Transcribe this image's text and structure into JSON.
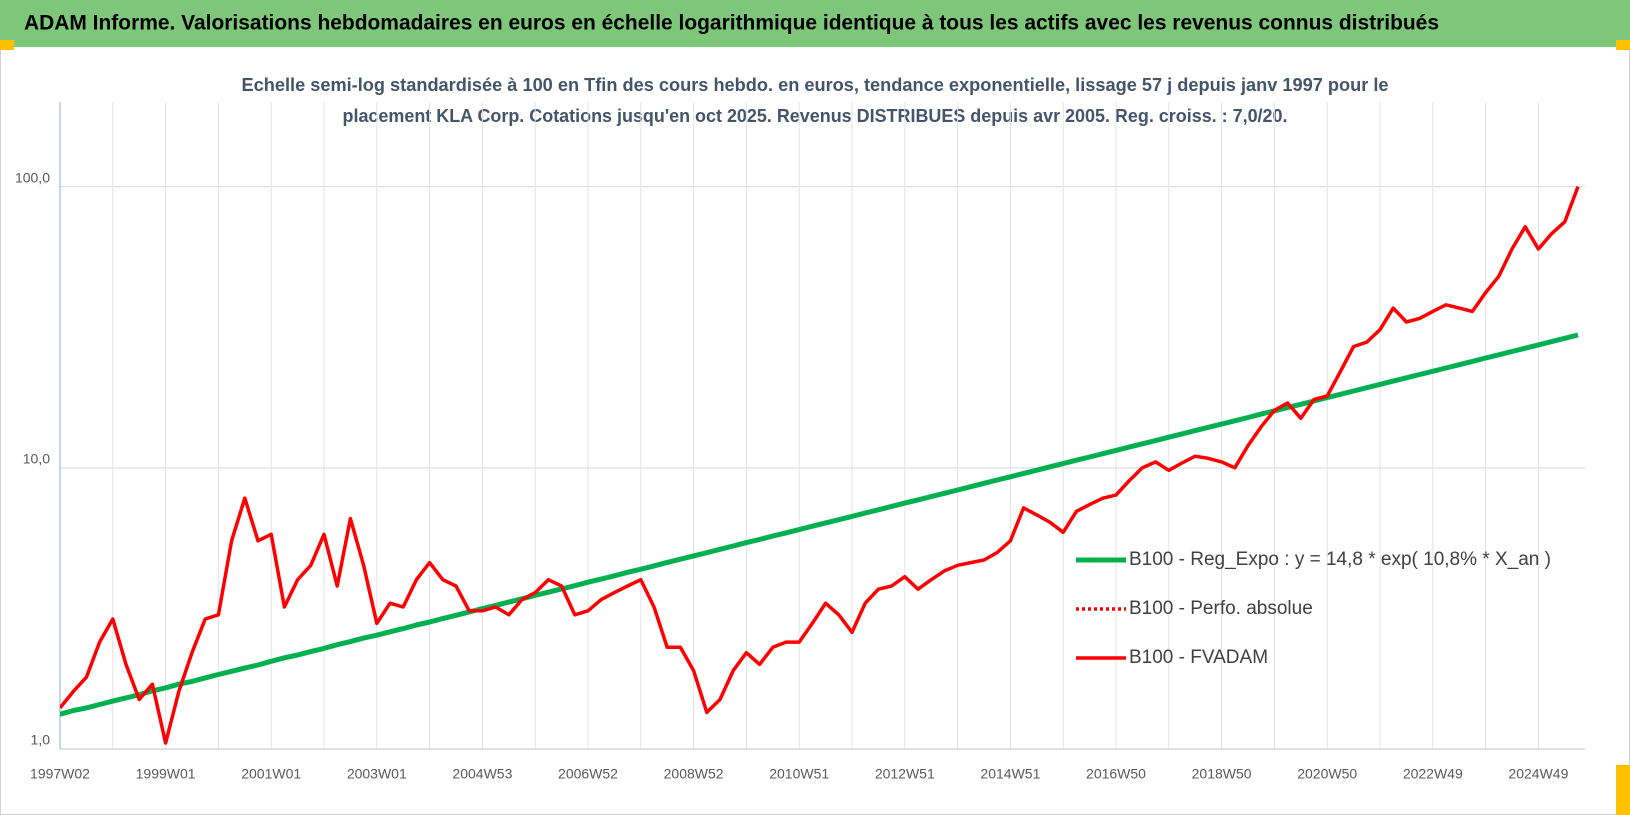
{
  "chart_data": {
    "type": "line",
    "title": "ADAM Informe. Valorisations hebdomadaires en euros en échelle logarithmique identique à tous les actifs avec les revenus connus distribués",
    "subtitle": [
      "Echelle semi-log standardisée à 100 en Tfin des cours hebdo. en euros, tendance exponentielle, lissage 57 j depuis janv 1997 pour le",
      "placement KLA Corp. Cotations jusqu'en oct 2025. Revenus DISTRIBUES depuis avr 2005. Reg. croiss. : 7,0/20."
    ],
    "log_y": true,
    "grid": true,
    "legend_position": "right",
    "ylim": [
      1,
      200
    ],
    "yticks": [
      {
        "value": 1,
        "label": "1,0"
      },
      {
        "value": 10,
        "label": "10,0"
      },
      {
        "value": 100,
        "label": "100,0"
      }
    ],
    "categories": [
      "1997W02",
      null,
      null,
      null,
      null,
      null,
      null,
      null,
      "1999W01",
      null,
      null,
      null,
      null,
      null,
      null,
      null,
      "2001W01",
      null,
      null,
      null,
      null,
      null,
      null,
      null,
      "2003W01",
      null,
      null,
      null,
      null,
      null,
      null,
      null,
      "2004W53",
      null,
      null,
      null,
      null,
      null,
      null,
      null,
      "2006W52",
      null,
      null,
      null,
      null,
      null,
      null,
      null,
      "2008W52",
      null,
      null,
      null,
      null,
      null,
      null,
      null,
      "2010W51",
      null,
      null,
      null,
      null,
      null,
      null,
      null,
      "2012W51",
      null,
      null,
      null,
      null,
      null,
      null,
      null,
      "2014W51",
      null,
      null,
      null,
      null,
      null,
      null,
      null,
      "2016W50",
      null,
      null,
      null,
      null,
      null,
      null,
      null,
      "2018W50",
      null,
      null,
      null,
      null,
      null,
      null,
      null,
      "2020W50",
      null,
      null,
      null,
      null,
      null,
      null,
      null,
      "2022W49",
      null,
      null,
      null,
      null,
      null,
      null,
      null,
      "2024W49",
      null,
      null,
      null
    ],
    "series": [
      {
        "name": "B100 - Reg_Expo : y = 14,8 * exp( 10,8% *  X_an )",
        "color": "#00b050",
        "line_style": "solid",
        "values": [
          1.33,
          1.37,
          1.4,
          1.44,
          1.48,
          1.52,
          1.56,
          1.61,
          1.65,
          1.7,
          1.74,
          1.79,
          1.84,
          1.89,
          1.94,
          1.99,
          2.05,
          2.11,
          2.16,
          2.22,
          2.28,
          2.35,
          2.41,
          2.48,
          2.54,
          2.61,
          2.68,
          2.76,
          2.83,
          2.91,
          2.99,
          3.07,
          3.16,
          3.24,
          3.33,
          3.42,
          3.52,
          3.61,
          3.71,
          3.81,
          3.92,
          4.02,
          4.13,
          4.25,
          4.36,
          4.48,
          4.61,
          4.73,
          4.86,
          4.99,
          5.13,
          5.27,
          5.42,
          5.56,
          5.72,
          5.87,
          6.03,
          6.2,
          6.37,
          6.54,
          6.72,
          6.91,
          7.09,
          7.29,
          7.49,
          7.69,
          7.9,
          8.12,
          8.34,
          8.57,
          8.81,
          9.05,
          9.29,
          9.55,
          9.81,
          10.08,
          10.35,
          10.64,
          10.93,
          11.23,
          11.53,
          11.85,
          12.17,
          12.5,
          12.85,
          13.2,
          13.56,
          13.93,
          14.31,
          14.7,
          15.1,
          15.52,
          15.94,
          16.38,
          16.83,
          17.29,
          17.77,
          18.26,
          18.76,
          19.27,
          19.8,
          20.34,
          20.9,
          21.47,
          22.05,
          22.65,
          23.27,
          23.91,
          24.57,
          25.24,
          25.93,
          26.64,
          27.37,
          28.12,
          28.89,
          29.68
        ]
      },
      {
        "name": "B100 - Perfo. absolue",
        "color": "#ff0000",
        "line_style": "dotted",
        "values": [
          null,
          null,
          null,
          null,
          null,
          null,
          null,
          null,
          null,
          null,
          null,
          null,
          null,
          null,
          null,
          null,
          null,
          null,
          null,
          null,
          null,
          null,
          null,
          null,
          null,
          null,
          null,
          null,
          null,
          null,
          null,
          null,
          null,
          null,
          null,
          null,
          null,
          null,
          null,
          null,
          null,
          null,
          null,
          null,
          null,
          null,
          null,
          null,
          null,
          null,
          null,
          null,
          null,
          null,
          null,
          null,
          null,
          null,
          null,
          null,
          null,
          null,
          null,
          null,
          null,
          null,
          null,
          null,
          null,
          null,
          null,
          null,
          null,
          null,
          null,
          null,
          null,
          null,
          null,
          null,
          null,
          null,
          null,
          null,
          null,
          null,
          null,
          null,
          null,
          null,
          null,
          null,
          null,
          null,
          null,
          null,
          null,
          null,
          null,
          null,
          null,
          null,
          null,
          null,
          null,
          null,
          null,
          null,
          null,
          null,
          null,
          null,
          null,
          null,
          null,
          null
        ]
      },
      {
        "name": "B100 - FVADAM",
        "color": "#ff0000",
        "line_style": "solid",
        "values": [
          1.4,
          1.6,
          1.8,
          2.4,
          2.9,
          2.0,
          1.5,
          1.7,
          1.05,
          1.6,
          2.2,
          2.9,
          3.0,
          5.5,
          7.8,
          5.5,
          5.8,
          3.2,
          4.0,
          4.5,
          5.8,
          3.8,
          6.6,
          4.5,
          2.8,
          3.3,
          3.2,
          4.0,
          4.6,
          4.0,
          3.8,
          3.1,
          3.1,
          3.2,
          3.0,
          3.4,
          3.6,
          4.0,
          3.8,
          3.0,
          3.1,
          3.4,
          3.6,
          3.8,
          4.0,
          3.2,
          2.3,
          2.3,
          1.9,
          1.35,
          1.5,
          1.9,
          2.2,
          2.0,
          2.3,
          2.4,
          2.4,
          2.8,
          3.3,
          3.0,
          2.6,
          3.3,
          3.7,
          3.8,
          4.1,
          3.7,
          4.0,
          4.3,
          4.5,
          4.6,
          4.7,
          5.0,
          5.5,
          7.2,
          6.8,
          6.4,
          5.9,
          7.0,
          7.4,
          7.8,
          8.0,
          9.0,
          10.0,
          10.5,
          9.8,
          10.4,
          11.0,
          10.8,
          10.5,
          10.0,
          12.0,
          14.0,
          16.0,
          17.0,
          15.0,
          17.5,
          18.0,
          22.0,
          27.0,
          28.0,
          31.0,
          37.0,
          33.0,
          34.0,
          36.0,
          38.0,
          37.0,
          36.0,
          42.0,
          48.0,
          60.0,
          72.0,
          60.0,
          68.0,
          75.0,
          100.0
        ]
      }
    ]
  }
}
